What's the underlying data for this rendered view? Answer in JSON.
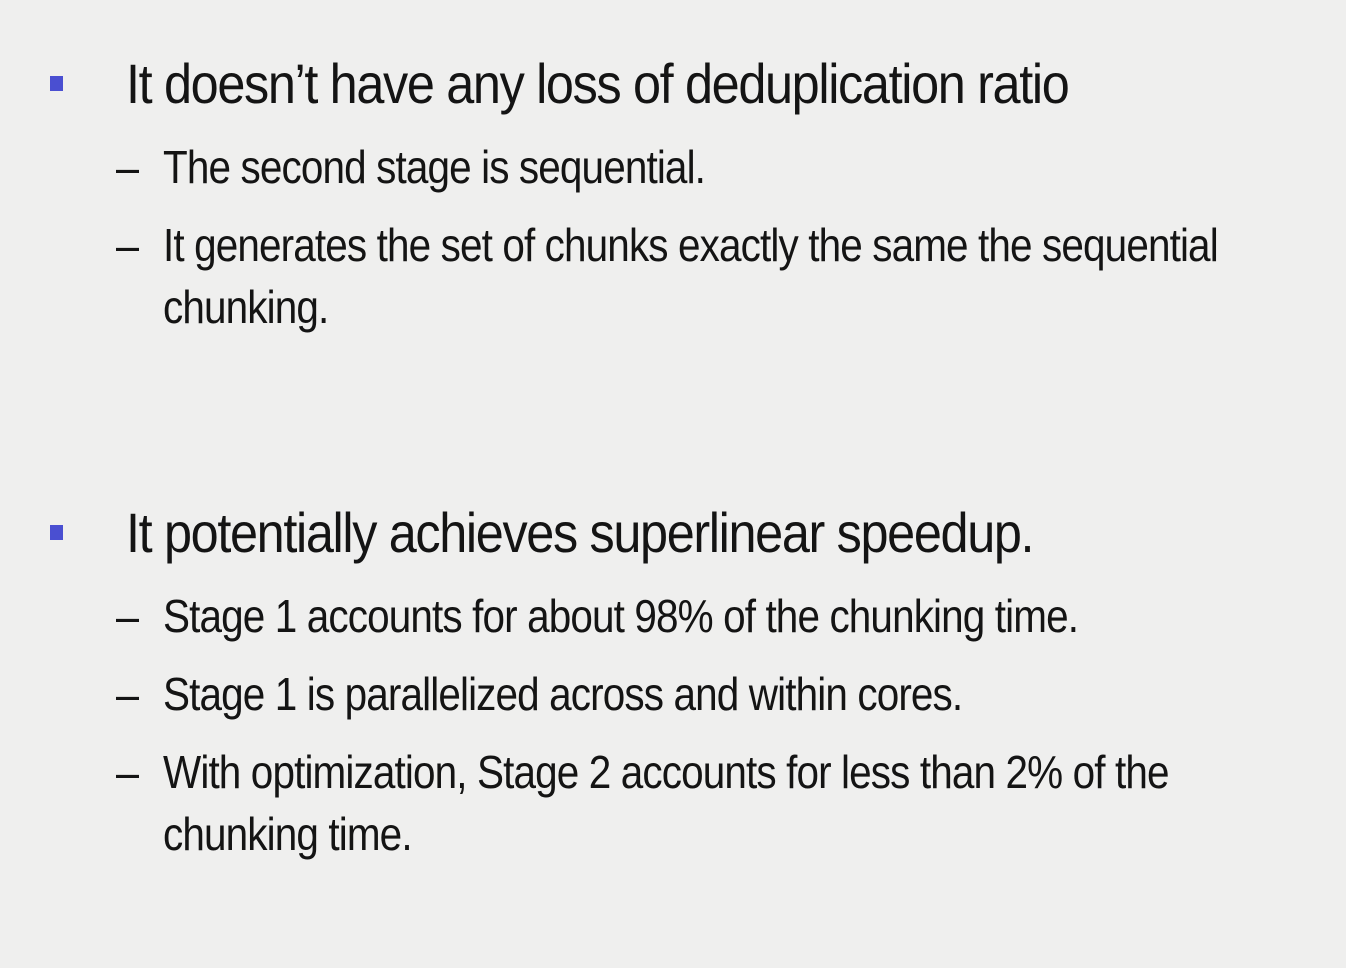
{
  "slide": {
    "accent_color": "#4a4fd1",
    "background_color": "#efefee",
    "bullet_icon": "square-bullet-icon",
    "bullets": [
      {
        "text": "It doesn’t have any loss of deduplication ratio",
        "subitems": [
          {
            "dash": "–",
            "text": "The second stage is sequential."
          },
          {
            "dash": "–",
            "text": "It generates the set of chunks exactly the same the sequential chunking."
          }
        ]
      },
      {
        "text": "It potentially achieves superlinear speedup.",
        "subitems": [
          {
            "dash": "–",
            "text": "Stage 1 accounts for about 98% of the chunking time."
          },
          {
            "dash": "–",
            "text": "Stage 1 is parallelized across and within cores."
          },
          {
            "dash": "–",
            "text": "With optimization, Stage 2 accounts for less than 2% of the chunking time."
          }
        ]
      }
    ]
  }
}
